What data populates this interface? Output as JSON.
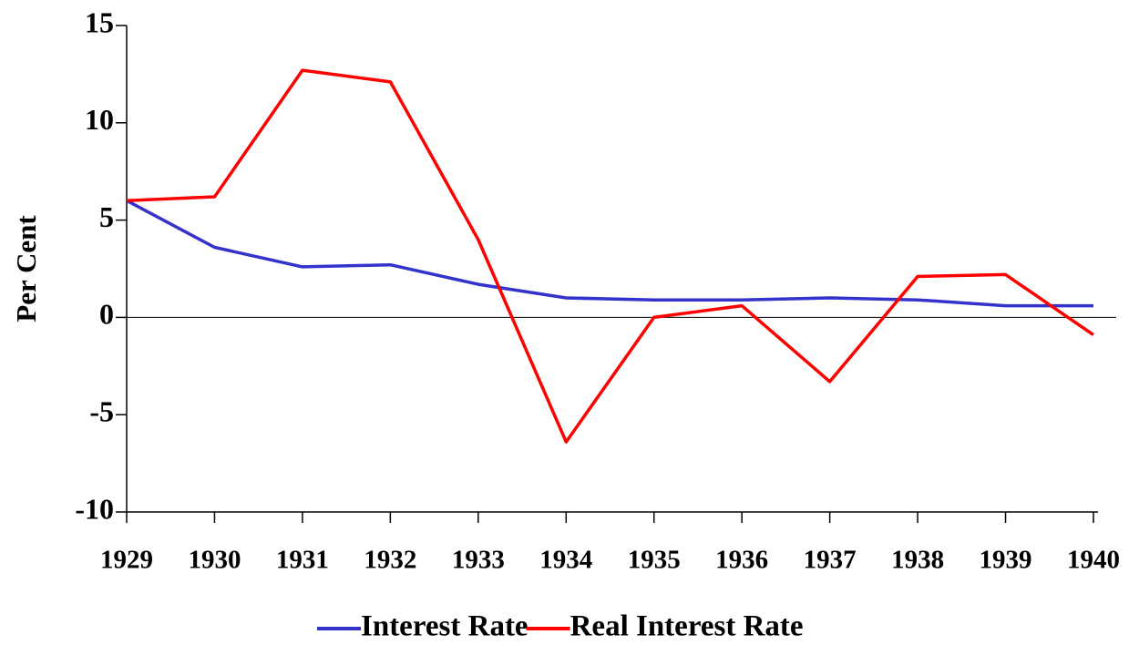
{
  "chart_data": {
    "type": "line",
    "y_label": "Per Cent",
    "categories": [
      "1929",
      "1930",
      "1931",
      "1932",
      "1933",
      "1934",
      "1935",
      "1936",
      "1937",
      "1938",
      "1939",
      "1940"
    ],
    "series": [
      {
        "name": "Interest Rate",
        "color": "#3333cc",
        "values": [
          6.0,
          3.6,
          2.6,
          2.7,
          1.7,
          1.0,
          0.9,
          0.9,
          1.0,
          0.9,
          0.6,
          0.6
        ]
      },
      {
        "name": "Real Interest Rate",
        "color": "#ff0000",
        "values": [
          6.0,
          6.2,
          12.7,
          12.1,
          4.0,
          -6.4,
          0.0,
          0.6,
          -3.3,
          2.1,
          2.2,
          -0.9
        ]
      }
    ],
    "ylim": [
      -10,
      15
    ],
    "yticks": [
      -10,
      -5,
      0,
      5,
      10,
      15
    ],
    "legend": "bottom"
  }
}
